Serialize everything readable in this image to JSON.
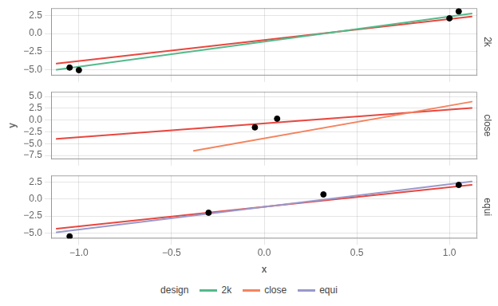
{
  "chart_data": [
    {
      "type": "scatter",
      "title": "2k",
      "grid": true,
      "tick_labels": "y",
      "xlim": [
        -1.15,
        1.15
      ],
      "xticks": [
        {
          "value": -1.0,
          "label": "−1.0"
        },
        {
          "value": -0.5,
          "label": "−0.5"
        },
        {
          "value": 0.0,
          "label": "0.0"
        },
        {
          "value": 0.5,
          "label": "0.5"
        },
        {
          "value": 1.0,
          "label": "1.0"
        }
      ],
      "ylim": [
        -5.8,
        3.5
      ],
      "yticks": [
        {
          "value": -5.0,
          "label": "−5.0"
        },
        {
          "value": -2.5,
          "label": "−2.5"
        },
        {
          "value": 0.0,
          "label": "0.0"
        },
        {
          "value": 2.5,
          "label": "2.5"
        }
      ],
      "series": [
        {
          "type": "scatter",
          "color": "black",
          "x": [
            -1.05,
            -1.0,
            1.05,
            1.0
          ],
          "values": [
            -4.7,
            -5.05,
            3.05,
            2.1
          ]
        },
        {
          "type": "line",
          "name": "2k",
          "color": "#54BA8C",
          "x": [
            -1.12,
            1.12
          ],
          "values": [
            -5.0,
            2.75
          ]
        },
        {
          "type": "line",
          "color": "#E8473F",
          "x": [
            -1.12,
            1.12
          ],
          "values": [
            -4.15,
            2.35
          ]
        }
      ]
    },
    {
      "type": "scatter",
      "title": "close",
      "ylabel": "y",
      "grid": true,
      "tick_labels": "y",
      "xlim": [
        -1.15,
        1.15
      ],
      "xticks": [
        {
          "value": -1.0,
          "label": "−1.0"
        },
        {
          "value": -0.5,
          "label": "−0.5"
        },
        {
          "value": 0.0,
          "label": "0.0"
        },
        {
          "value": 0.5,
          "label": "0.5"
        },
        {
          "value": 1.0,
          "label": "1.0"
        }
      ],
      "ylim": [
        -8.3,
        6.0
      ],
      "yticks": [
        {
          "value": -7.5,
          "label": "−7.5"
        },
        {
          "value": -5.0,
          "label": "−5.0"
        },
        {
          "value": -2.5,
          "label": "−2.5"
        },
        {
          "value": 0.0,
          "label": "0.0"
        },
        {
          "value": 2.5,
          "label": "2.5"
        },
        {
          "value": 5.0,
          "label": "5.0"
        }
      ],
      "series": [
        {
          "type": "scatter",
          "color": "black",
          "x": [
            -0.05,
            0.07
          ],
          "values": [
            -1.55,
            0.3
          ]
        },
        {
          "type": "line",
          "name": "close",
          "color": "#F4845F",
          "x": [
            -0.38,
            1.12
          ],
          "values": [
            -6.5,
            3.9
          ]
        },
        {
          "type": "line",
          "color": "#E8473F",
          "x": [
            -1.12,
            1.12
          ],
          "values": [
            -4.0,
            2.55
          ]
        }
      ]
    },
    {
      "type": "scatter",
      "title": "equi",
      "xlabel": "x",
      "grid": true,
      "legend": "bottom",
      "legend_title": "design",
      "xlim": [
        -1.15,
        1.15
      ],
      "xticks": [
        {
          "value": -1.0,
          "label": "−1.0"
        },
        {
          "value": -0.5,
          "label": "−0.5"
        },
        {
          "value": 0.0,
          "label": "0.0"
        },
        {
          "value": 0.5,
          "label": "0.5"
        },
        {
          "value": 1.0,
          "label": "1.0"
        }
      ],
      "ylim": [
        -5.8,
        3.5
      ],
      "yticks": [
        {
          "value": -5.0,
          "label": "−5.0"
        },
        {
          "value": -2.5,
          "label": "−2.5"
        },
        {
          "value": 0.0,
          "label": "0.0"
        },
        {
          "value": 2.5,
          "label": "2.5"
        }
      ],
      "series": [
        {
          "type": "scatter",
          "color": "black",
          "x": [
            -1.05,
            -0.3,
            0.32,
            1.05
          ],
          "values": [
            -5.5,
            -2.0,
            0.7,
            2.1
          ]
        },
        {
          "type": "line",
          "name": "equi",
          "color": "#9999CC",
          "x": [
            -1.12,
            1.12
          ],
          "values": [
            -4.9,
            2.6
          ]
        },
        {
          "type": "line",
          "color": "#E8473F",
          "x": [
            -1.12,
            1.12
          ],
          "values": [
            -4.35,
            2.1
          ]
        }
      ]
    }
  ]
}
